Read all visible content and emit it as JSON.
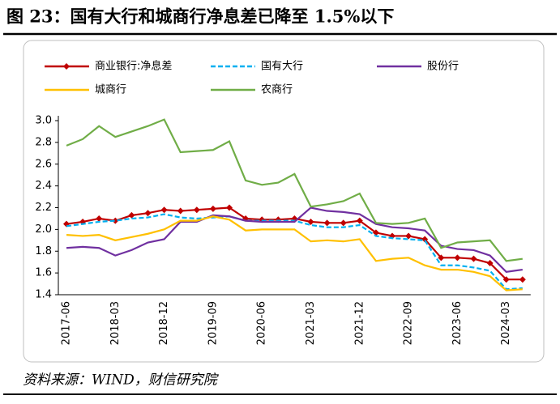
{
  "header": {
    "title": "图 23：国有大行和城商行净息差已降至 1.5%以下"
  },
  "chart_data": {
    "type": "line",
    "categories": [
      "2017-06",
      null,
      null,
      "2018-03",
      null,
      null,
      "2018-12",
      null,
      null,
      "2019-09",
      null,
      null,
      "2020-06",
      null,
      null,
      "2021-03",
      null,
      null,
      "2021-12",
      null,
      null,
      "2022-09",
      null,
      null,
      "2023-06",
      null,
      null,
      "2024-03",
      null
    ],
    "ylim": [
      1.4,
      3.0
    ],
    "yticks": [
      1.4,
      1.6,
      1.8,
      {
        "value": 2.0,
        "label": "2.0"
      },
      2.2,
      2.4,
      2.6,
      2.8,
      {
        "value": 3.0,
        "label": "3.0"
      }
    ],
    "series": [
      {
        "name": "商业银行:净息差",
        "color": "#c00000",
        "marker": "diamond",
        "values": [
          2.05,
          2.07,
          2.1,
          2.08,
          2.13,
          2.15,
          2.18,
          2.17,
          2.18,
          2.19,
          2.2,
          2.1,
          2.09,
          2.09,
          2.1,
          2.07,
          2.06,
          2.06,
          2.08,
          1.97,
          1.94,
          1.94,
          1.91,
          1.74,
          1.74,
          1.73,
          1.69,
          1.54,
          1.54
        ]
      },
      {
        "name": "国有大行",
        "color": "#00b0f0",
        "dashed": true,
        "values": [
          2.03,
          2.05,
          2.07,
          2.08,
          2.1,
          2.11,
          2.14,
          2.11,
          2.1,
          2.11,
          2.12,
          2.08,
          2.08,
          2.08,
          2.08,
          2.04,
          2.02,
          2.02,
          2.04,
          1.94,
          1.92,
          1.91,
          1.9,
          1.67,
          1.67,
          1.65,
          1.62,
          1.45,
          1.46
        ]
      },
      {
        "name": "股份行",
        "color": "#7030a0",
        "values": [
          1.83,
          1.84,
          1.83,
          1.76,
          1.81,
          1.88,
          1.91,
          2.07,
          2.07,
          2.13,
          2.12,
          2.08,
          2.07,
          2.07,
          2.07,
          2.2,
          2.17,
          2.16,
          2.14,
          2.05,
          2.02,
          2.01,
          1.99,
          1.85,
          1.82,
          1.81,
          1.76,
          1.61,
          1.63
        ]
      },
      {
        "name": "城商行",
        "color": "#ffc000",
        "values": [
          1.95,
          1.94,
          1.95,
          1.9,
          1.93,
          1.96,
          2.0,
          2.08,
          2.08,
          2.12,
          2.09,
          1.99,
          2.0,
          2.0,
          2.0,
          1.89,
          1.9,
          1.89,
          1.91,
          1.71,
          1.73,
          1.74,
          1.67,
          1.63,
          1.63,
          1.61,
          1.57,
          1.44,
          1.45
        ]
      },
      {
        "name": "农商行",
        "color": "#70ad47",
        "values": [
          2.77,
          2.83,
          2.95,
          2.85,
          2.9,
          2.95,
          3.01,
          2.71,
          2.72,
          2.73,
          2.81,
          2.45,
          2.41,
          2.43,
          2.51,
          2.21,
          2.23,
          2.26,
          2.33,
          2.06,
          2.05,
          2.06,
          2.1,
          1.83,
          1.88,
          1.89,
          1.9,
          1.71,
          1.73
        ]
      }
    ]
  },
  "footer": {
    "source": "资料来源：WIND，财信研究院"
  }
}
